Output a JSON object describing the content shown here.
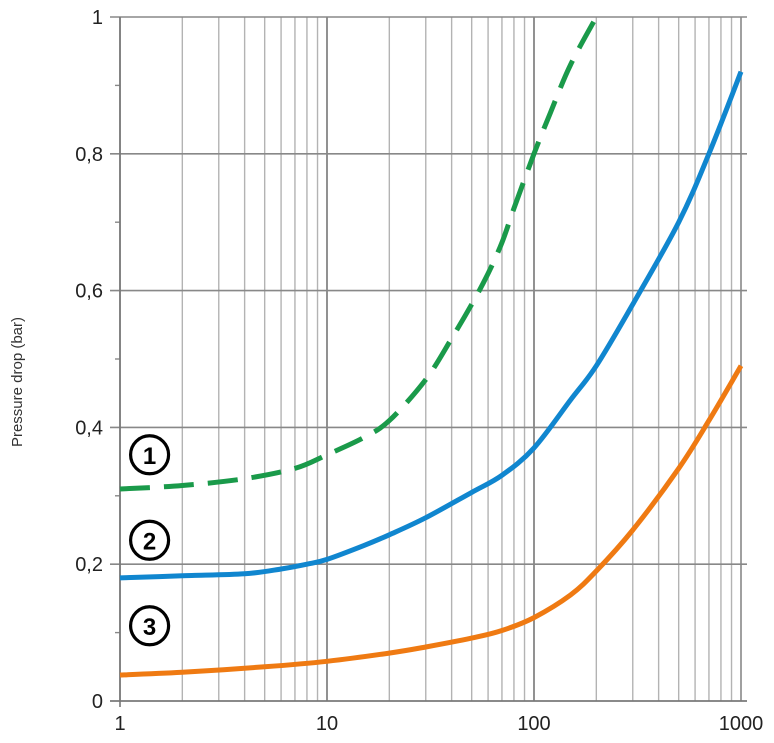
{
  "chart_data": {
    "type": "line",
    "title": "",
    "xlabel": "",
    "ylabel": "Pressure drop (bar)",
    "xscale": "log",
    "xlim": [
      1,
      1000
    ],
    "ylim": [
      0,
      1
    ],
    "grid": true,
    "x_ticks": [
      "1",
      "10",
      "100",
      "1000"
    ],
    "y_ticks": [
      "0",
      "0,2",
      "0,4",
      "0,6",
      "0,8",
      "1"
    ],
    "series": [
      {
        "marker": "1",
        "color": "#1a9a4a",
        "style": "dashed",
        "x": [
          1,
          2,
          4,
          7,
          10,
          15,
          20,
          30,
          40,
          50,
          60,
          70,
          80,
          100,
          120,
          150,
          200
        ],
        "y": [
          0.31,
          0.315,
          0.325,
          0.34,
          0.36,
          0.385,
          0.41,
          0.47,
          0.53,
          0.58,
          0.625,
          0.67,
          0.72,
          0.8,
          0.86,
          0.93,
          1.0
        ]
      },
      {
        "marker": "2",
        "color": "#1086cf",
        "style": "solid",
        "x": [
          1,
          2,
          4,
          6,
          8,
          10,
          15,
          20,
          30,
          50,
          70,
          100,
          150,
          200,
          300,
          500,
          700,
          1000
        ],
        "y": [
          0.18,
          0.183,
          0.186,
          0.193,
          0.2,
          0.207,
          0.227,
          0.243,
          0.268,
          0.305,
          0.33,
          0.37,
          0.44,
          0.49,
          0.58,
          0.7,
          0.8,
          0.92
        ]
      },
      {
        "marker": "3",
        "color": "#ef7a12",
        "style": "solid",
        "x": [
          1,
          2,
          5,
          10,
          20,
          30,
          50,
          70,
          100,
          150,
          200,
          300,
          500,
          700,
          1000
        ],
        "y": [
          0.038,
          0.042,
          0.05,
          0.058,
          0.07,
          0.079,
          0.092,
          0.103,
          0.122,
          0.155,
          0.19,
          0.25,
          0.34,
          0.41,
          0.49
        ]
      }
    ],
    "annotations": [
      {
        "text": "1",
        "series": 0,
        "x": 1.3,
        "y": 0.36
      },
      {
        "text": "2",
        "series": 1,
        "x": 1.3,
        "y": 0.235
      },
      {
        "text": "3",
        "series": 2,
        "x": 1.3,
        "y": 0.11
      }
    ]
  }
}
